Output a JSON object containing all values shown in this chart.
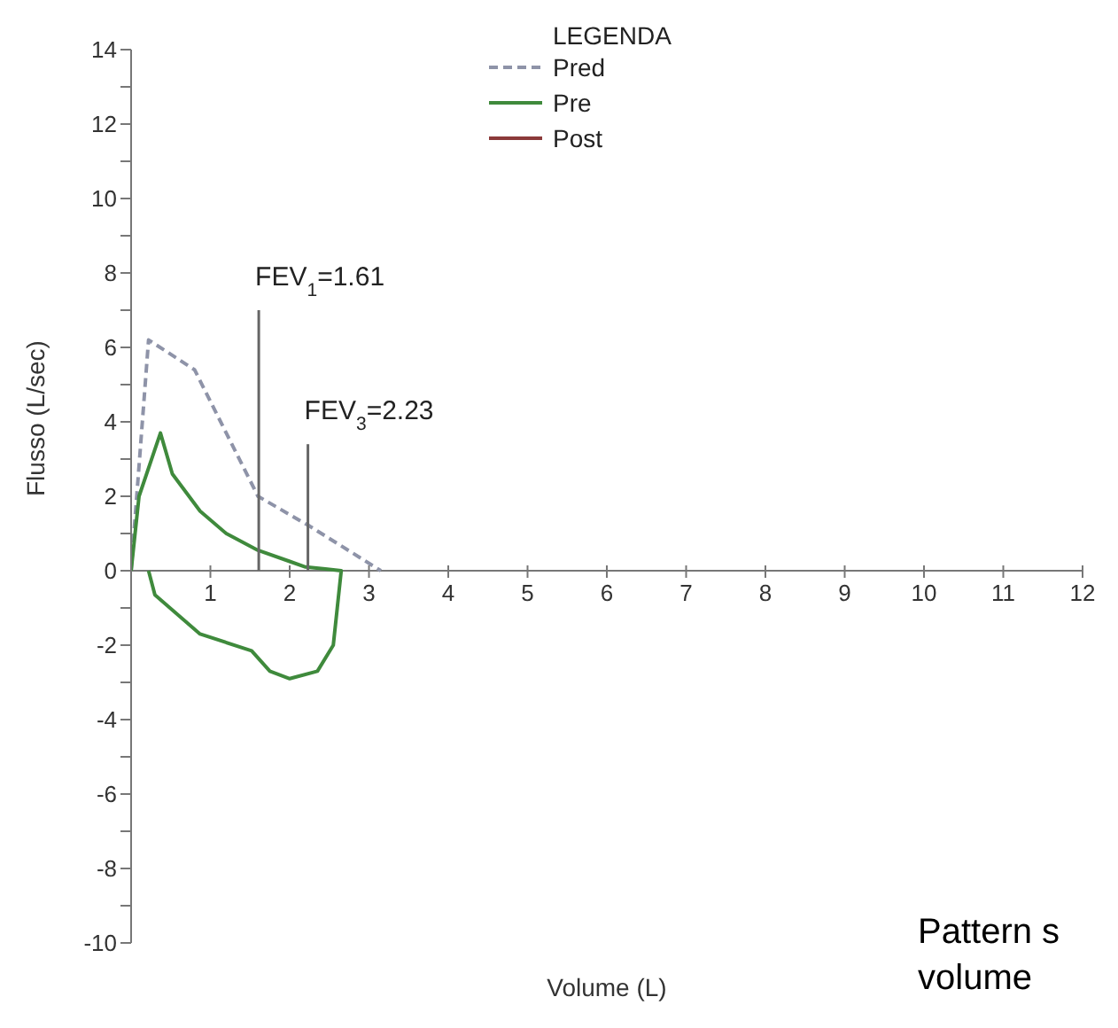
{
  "chart_data": {
    "type": "line",
    "xlabel": "Volume (L)",
    "ylabel": "Flusso (L/sec)",
    "legend_title": "LEGENDA",
    "legend": "top",
    "xlim": [
      0,
      12
    ],
    "xticks": [
      1,
      2,
      3,
      4,
      5,
      6,
      7,
      8,
      9,
      10,
      11,
      12
    ],
    "ylim": [
      -10,
      14
    ],
    "yticks": [
      -10,
      {
        "value": -9,
        "label": null
      },
      -8,
      {
        "value": -7,
        "label": null
      },
      -6,
      {
        "value": -5,
        "label": null
      },
      -4,
      {
        "value": -3,
        "label": null
      },
      -2,
      {
        "value": -1,
        "label": null
      },
      0,
      {
        "value": 1,
        "label": null
      },
      2,
      {
        "value": 3,
        "label": null
      },
      4,
      {
        "value": 5,
        "label": null
      },
      6,
      {
        "value": 7,
        "label": null
      },
      8,
      {
        "value": 9,
        "label": null
      },
      10,
      {
        "value": 11,
        "label": null
      },
      12,
      {
        "value": 13,
        "label": null
      },
      14
    ],
    "marker": "none",
    "series": [
      {
        "name": "Pred",
        "color": "#8e93a8",
        "line_style": "dashed",
        "x": [
          0,
          0.22,
          0.8,
          1.6,
          2.25,
          3.15
        ],
        "values": [
          0,
          6.2,
          5.4,
          2.0,
          1.2,
          0
        ]
      },
      {
        "name": "Pre",
        "color": "#3f8a3c",
        "line_style": "solid",
        "x": [
          0,
          0.1,
          0.37,
          0.52,
          0.87,
          1.2,
          1.6,
          2.0,
          2.2,
          2.45,
          2.65,
          2.6,
          2.55,
          2.35,
          2.0,
          1.75,
          1.52,
          0.87,
          0.3,
          0.22
        ],
        "values": [
          0,
          2.0,
          3.7,
          2.6,
          1.6,
          1.0,
          0.55,
          0.25,
          0.1,
          0.05,
          0,
          -1.0,
          -2.0,
          -2.7,
          -2.9,
          -2.7,
          -2.15,
          -1.7,
          -0.65,
          0
        ]
      },
      {
        "name": "Post",
        "color": "#8b3a3a",
        "line_style": "solid"
      },
      {
        "color": "#666666",
        "line_style": "solid",
        "x": [
          1.61,
          1.61
        ],
        "values": [
          0,
          7
        ]
      },
      {
        "color": "#666666",
        "line_style": "solid",
        "x": [
          2.23,
          2.23
        ],
        "values": [
          0,
          3.4
        ]
      }
    ],
    "annotations": [
      {
        "text": "FEV$_{1}$=1.61",
        "x": 1.61,
        "y": 7
      },
      {
        "text": "FEV$_{3}$=2.23",
        "x": 2.23,
        "y": 3.4
      },
      "Pattern s",
      "volume"
    ]
  }
}
